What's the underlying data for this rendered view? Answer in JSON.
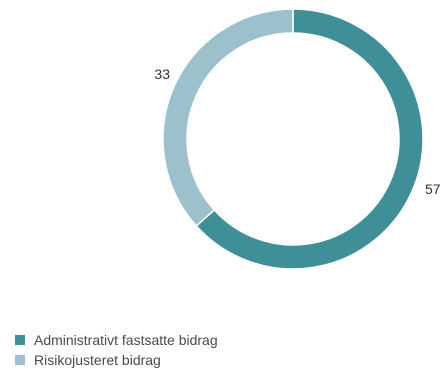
{
  "chart_data": {
    "type": "pie",
    "title": "",
    "donut": true,
    "series": [
      {
        "name": "Administrativt fastsatte bidrag",
        "value": 57,
        "label": "57",
        "color": "#3f8f99"
      },
      {
        "name": "Risikojusteret bidrag",
        "value": 33,
        "label": "33",
        "color": "#9cc0cc"
      }
    ],
    "legend_position": "bottom-left"
  }
}
